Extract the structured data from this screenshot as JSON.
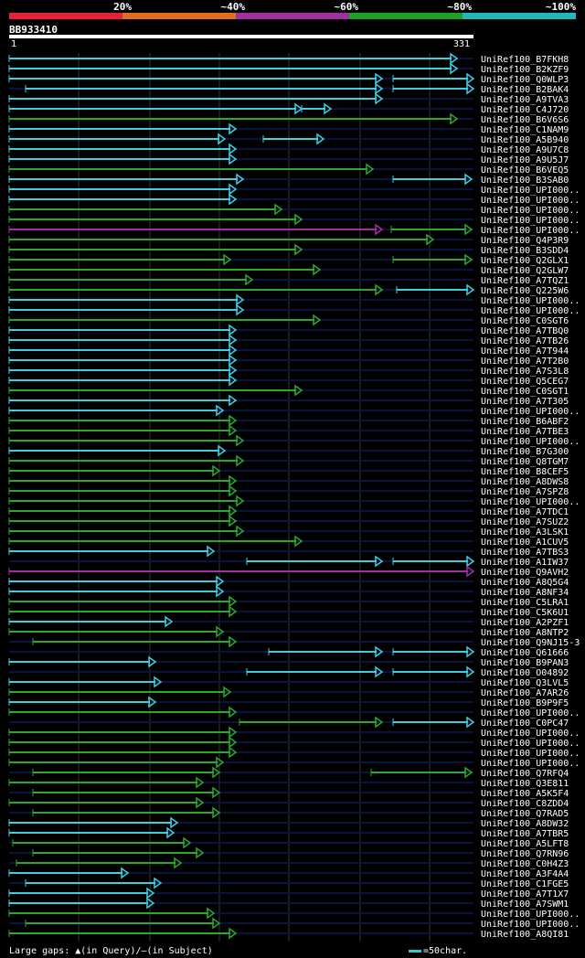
{
  "legend": {
    "labels": [
      "20%",
      "~40%",
      "~60%",
      "~80%",
      "~100%"
    ],
    "colors": [
      "#e8203a",
      "#e07020",
      "#a030a0",
      "#20a020",
      "#20b8b8"
    ]
  },
  "query": {
    "id": "BB933410",
    "start": "1",
    "end": "331"
  },
  "colors": {
    "cyan": "#3ccfe0",
    "green": "#2ca82c",
    "magenta": "#a030a0",
    "track": "#0a1240",
    "gridline": "#333333"
  },
  "hits": [
    {
      "label": "UniRef100_B7FKH8"
    },
    {
      "label": "UniRef100_B2KZF9"
    },
    {
      "label": "UniRef100_Q0WLP3"
    },
    {
      "label": "UniRef100_B2BAK4"
    },
    {
      "label": "UniRef100_A9TVA3"
    },
    {
      "label": "UniRef100_C4J720"
    },
    {
      "label": "UniRef100_B6V6S6"
    },
    {
      "label": "UniRef100_C1NAM9"
    },
    {
      "label": "UniRef100_A5B940"
    },
    {
      "label": "UniRef100_A9U7C8"
    },
    {
      "label": "UniRef100_A9U5J7"
    },
    {
      "label": "UniRef100_B6VEQ5"
    },
    {
      "label": "UniRef100_B3SAB0"
    },
    {
      "label": "UniRef100_UPI000.."
    },
    {
      "label": "UniRef100_UPI000.."
    },
    {
      "label": "UniRef100_UPI000.."
    },
    {
      "label": "UniRef100_UPI000.."
    },
    {
      "label": "UniRef100_UPI000.."
    },
    {
      "label": "UniRef100_Q4P3R9"
    },
    {
      "label": "UniRef100_B3SDD4"
    },
    {
      "label": "UniRef100_Q2GLX1"
    },
    {
      "label": "UniRef100_Q2GLW7"
    },
    {
      "label": "UniRef100_A7TQZ1"
    },
    {
      "label": "UniRef100_Q225W6"
    },
    {
      "label": "UniRef100_UPI000.."
    },
    {
      "label": "UniRef100_UPI000.."
    },
    {
      "label": "UniRef100_C0SGT6"
    },
    {
      "label": "UniRef100_A7TBQ0"
    },
    {
      "label": "UniRef100_A7TB26"
    },
    {
      "label": "UniRef100_A7T944"
    },
    {
      "label": "UniRef100_A7T2B0"
    },
    {
      "label": "UniRef100_A7S3L8"
    },
    {
      "label": "UniRef100_Q5CEG7"
    },
    {
      "label": "UniRef100_C0SGT1"
    },
    {
      "label": "UniRef100_A7T305"
    },
    {
      "label": "UniRef100_UPI000.."
    },
    {
      "label": "UniRef100_B6ABF2"
    },
    {
      "label": "UniRef100_A7TBE3"
    },
    {
      "label": "UniRef100_UPI000.."
    },
    {
      "label": "UniRef100_B7G300"
    },
    {
      "label": "UniRef100_Q8TGM7"
    },
    {
      "label": "UniRef100_B8CEF5"
    },
    {
      "label": "UniRef100_A8DWS8"
    },
    {
      "label": "UniRef100_A7SPZ8"
    },
    {
      "label": "UniRef100_UPI000.."
    },
    {
      "label": "UniRef100_A7TDC1"
    },
    {
      "label": "UniRef100_A7SUZ2"
    },
    {
      "label": "UniRef100_A3LSK1"
    },
    {
      "label": "UniRef100_A1CUV5"
    },
    {
      "label": "UniRef100_A7TBS3"
    },
    {
      "label": "UniRef100_A1IW37"
    },
    {
      "label": "UniRef100_Q9AVH2"
    },
    {
      "label": "UniRef100_A8Q5G4"
    },
    {
      "label": "UniRef100_A8NF34"
    },
    {
      "label": "UniRef100_C5LRA1"
    },
    {
      "label": "UniRef100_C5K6U1"
    },
    {
      "label": "UniRef100_A2PZF1"
    },
    {
      "label": "UniRef100_A8NTP2"
    },
    {
      "label": "UniRef100_Q9NJ15-3"
    },
    {
      "label": "UniRef100_Q61666"
    },
    {
      "label": "UniRef100_B9PAN3"
    },
    {
      "label": "UniRef100_O04892"
    },
    {
      "label": "UniRef100_Q3LVL5"
    },
    {
      "label": "UniRef100_A7AR26"
    },
    {
      "label": "UniRef100_B9P9F5"
    },
    {
      "label": "UniRef100_UPI000.."
    },
    {
      "label": "UniRef100_C0PC47"
    },
    {
      "label": "UniRef100_UPI000.."
    },
    {
      "label": "UniRef100_UPI000.."
    },
    {
      "label": "UniRef100_UPI000.."
    },
    {
      "label": "UniRef100_UPI000.."
    },
    {
      "label": "UniRef100_Q7RFQ4"
    },
    {
      "label": "UniRef100_Q3E811"
    },
    {
      "label": "UniRef100_A5K5F4"
    },
    {
      "label": "UniRef100_C8ZDD4"
    },
    {
      "label": "UniRef100_Q7RAD5"
    },
    {
      "label": "UniRef100_A8DW32"
    },
    {
      "label": "UniRef100_A7TBR5"
    },
    {
      "label": "UniRef100_A5LFT8"
    },
    {
      "label": "UniRef100_Q7RN96"
    },
    {
      "label": "UniRef100_C0H4Z3"
    },
    {
      "label": "UniRef100_A3F4A4"
    },
    {
      "label": "UniRef100_C1FGE5"
    },
    {
      "label": "UniRef100_A7T1X7"
    },
    {
      "label": "UniRef100_A7SWM1"
    },
    {
      "label": "UniRef100_UPI000.."
    },
    {
      "label": "UniRef100_UPI000.."
    },
    {
      "label": "UniRef100_A8QI81"
    }
  ],
  "footer": {
    "gaps": "Large gaps: ▲(in Query)/—(in Subject)",
    "scale": "=50char."
  }
}
